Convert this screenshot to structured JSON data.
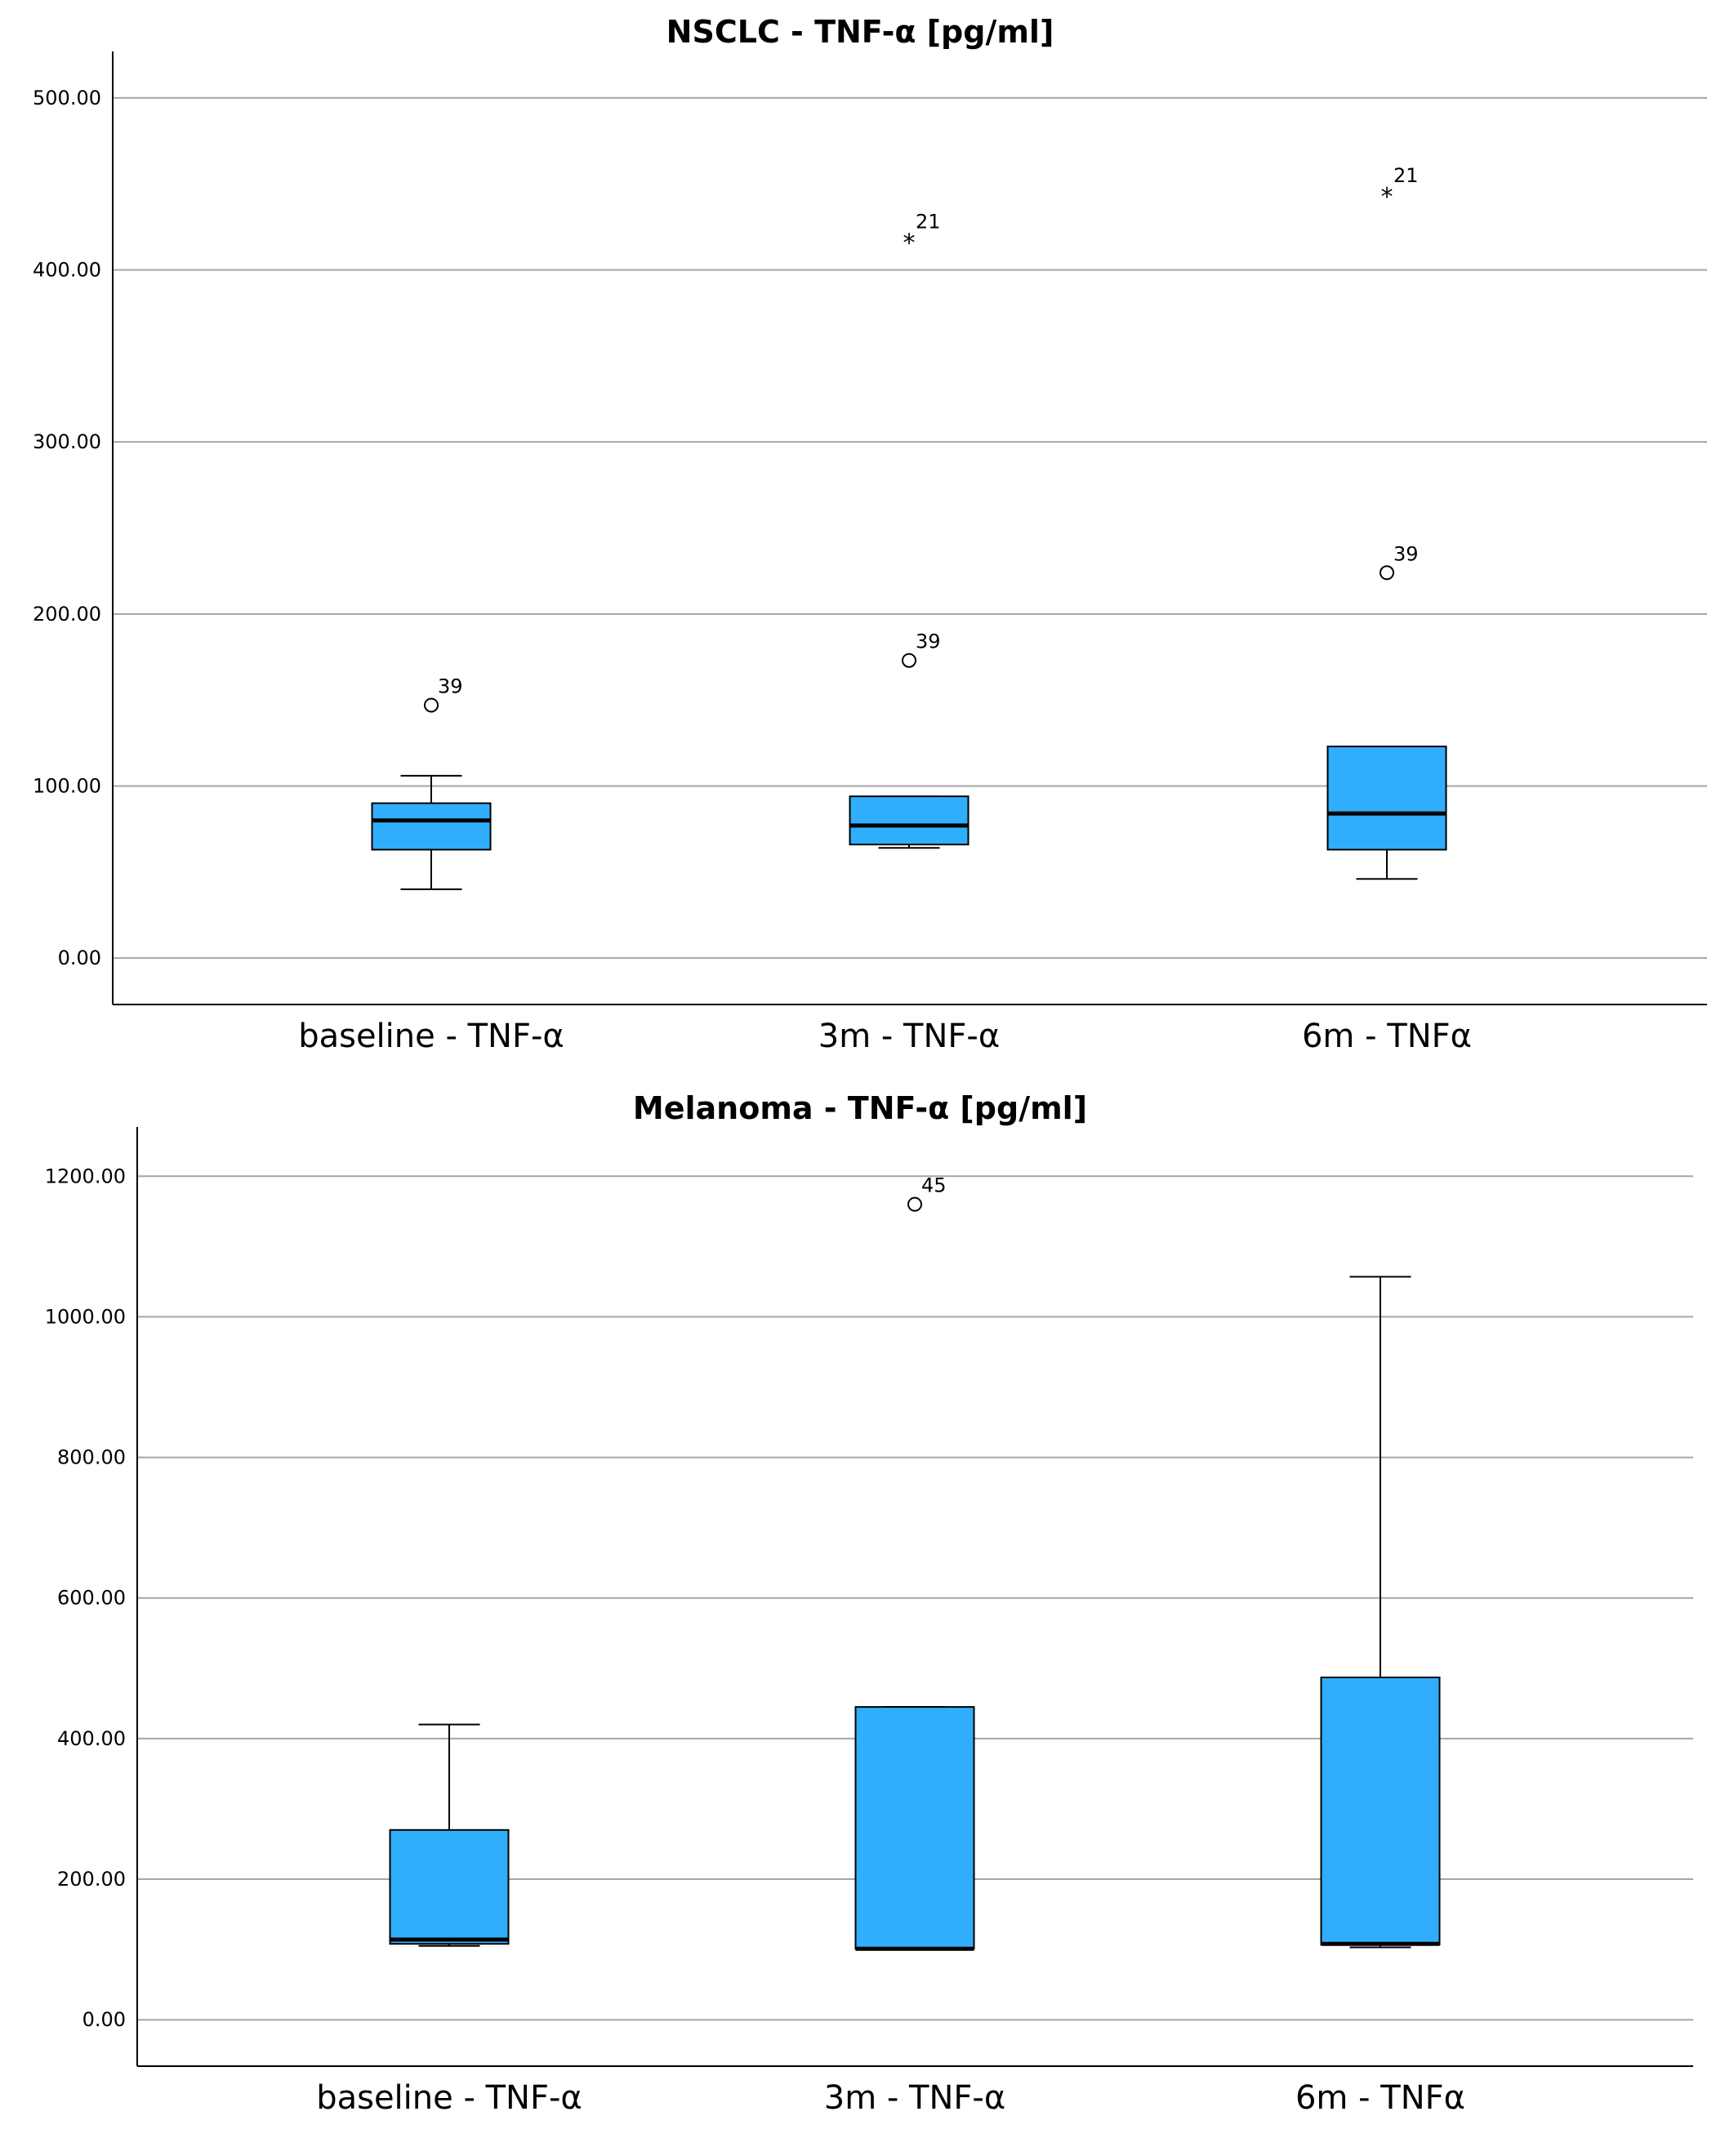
{
  "colors": {
    "box_fill": "#30aefc",
    "gridline": "#a6a6a6",
    "axis": "#000000",
    "background": "#ffffff"
  },
  "chart_data": [
    {
      "type": "box",
      "title": "NSCLC - TNF-α [pg/ml]",
      "xlabel": "",
      "ylabel": "",
      "ylim": [
        -27,
        527
      ],
      "yticks": [
        0,
        100,
        200,
        300,
        400,
        500
      ],
      "ytick_labels": [
        "0.00",
        "100.00",
        "200.00",
        "300.00",
        "400.00",
        "500.00"
      ],
      "grid": true,
      "categories": [
        "baseline - TNF-α",
        "3m - TNF-α",
        "6m - TNFα"
      ],
      "boxes": [
        {
          "whisker_low": 40,
          "q1": 63,
          "median": 80,
          "q3": 90,
          "whisker_high": 106
        },
        {
          "whisker_low": 64,
          "q1": 66,
          "median": 77,
          "q3": 94,
          "whisker_high": 94
        },
        {
          "whisker_low": 46,
          "q1": 63,
          "median": 84,
          "q3": 123,
          "whisker_high": 123
        }
      ],
      "outliers": [
        {
          "category": 0,
          "value": 147,
          "kind": "circle",
          "label": "39"
        },
        {
          "category": 1,
          "value": 417,
          "kind": "star",
          "label": "21"
        },
        {
          "category": 1,
          "value": 173,
          "kind": "circle",
          "label": "39"
        },
        {
          "category": 2,
          "value": 444,
          "kind": "star",
          "label": "21"
        },
        {
          "category": 2,
          "value": 224,
          "kind": "circle",
          "label": "39"
        }
      ]
    },
    {
      "type": "box",
      "title": "Melanoma - TNF-α [pg/ml]",
      "xlabel": "",
      "ylabel": "",
      "ylim": [
        -66,
        1270
      ],
      "yticks": [
        0,
        200,
        400,
        600,
        800,
        1000,
        1200
      ],
      "ytick_labels": [
        "0.00",
        "200.00",
        "400.00",
        "600.00",
        "800.00",
        "1000.00",
        "1200.00"
      ],
      "grid": true,
      "categories": [
        "baseline - TNF-α",
        "3m - TNF-α",
        "6m - TNFα"
      ],
      "boxes": [
        {
          "whisker_low": 105,
          "q1": 108,
          "median": 114,
          "q3": 270,
          "whisker_high": 420
        },
        {
          "whisker_low": 101,
          "q1": 101,
          "median": 101,
          "q3": 445,
          "whisker_high": 445
        },
        {
          "whisker_low": 103,
          "q1": 107,
          "median": 108,
          "q3": 487,
          "whisker_high": 1057
        }
      ],
      "outliers": [
        {
          "category": 1,
          "value": 1160,
          "kind": "circle",
          "label": "45"
        }
      ]
    }
  ]
}
